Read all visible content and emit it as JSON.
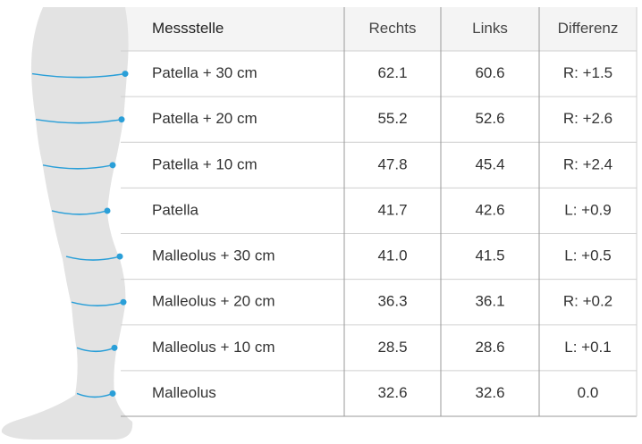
{
  "table": {
    "columns": [
      "Messstelle",
      "Rechts",
      "Links",
      "Differenz"
    ],
    "rows": [
      [
        "Patella + 30 cm",
        "62.1",
        "60.6",
        "R: +1.5"
      ],
      [
        "Patella + 20 cm",
        "55.2",
        "52.6",
        "R: +2.6"
      ],
      [
        "Patella + 10 cm",
        "47.8",
        "45.4",
        "R: +2.4"
      ],
      [
        "Patella",
        "41.7",
        "42.6",
        "L: +0.9"
      ],
      [
        "Malleolus + 30 cm",
        "41.0",
        "41.5",
        "L: +0.5"
      ],
      [
        "Malleolus + 20 cm",
        "36.3",
        "36.1",
        "R: +0.2"
      ],
      [
        "Malleolus + 10 cm",
        "28.5",
        "28.6",
        "L: +0.1"
      ],
      [
        "Malleolus",
        "32.6",
        "32.6",
        "0.0"
      ]
    ]
  }
}
